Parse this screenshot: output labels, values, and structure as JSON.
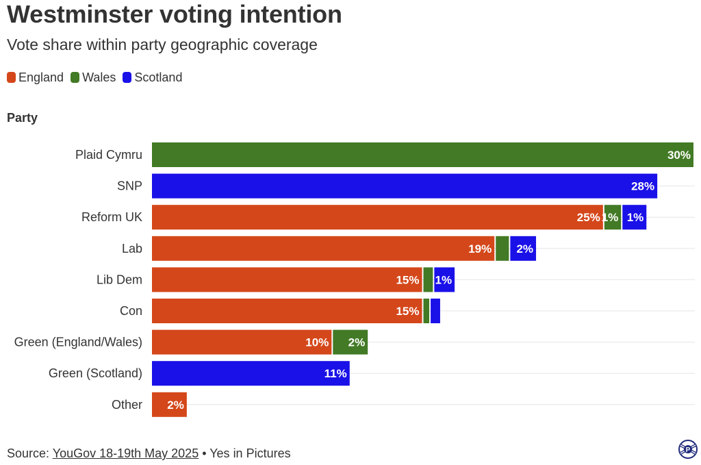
{
  "title": "Westminster voting intention",
  "subtitle": "Vote share within party geographic coverage",
  "legend": [
    {
      "label": "England",
      "color": "#d4471a"
    },
    {
      "label": "Wales",
      "color": "#427a25"
    },
    {
      "label": "Scotland",
      "color": "#1a10e8"
    }
  ],
  "axis_title": "Party",
  "source": {
    "prefix": "Source: ",
    "link_text": "YouGov 18-19th May 2025",
    "suffix": " • Yes in Pictures"
  },
  "logo_icon": "yes-in-pictures-logo",
  "colors": {
    "England": "#d4471a",
    "Wales": "#427a25",
    "Scotland": "#1a10e8"
  },
  "chart_data": {
    "type": "bar",
    "orientation": "horizontal",
    "stacked": true,
    "title": "Westminster voting intention",
    "subtitle": "Vote share within party geographic coverage",
    "ylabel": "Party",
    "xlim": [
      0,
      30
    ],
    "grid": true,
    "legend_position": "top-left",
    "categories": [
      "Plaid Cymru",
      "SNP",
      "Reform UK",
      "Lab",
      "Lib Dem",
      "Con",
      "Green (England/Wales)",
      "Green (Scotland)",
      "Other"
    ],
    "series": [
      {
        "name": "England",
        "values": [
          0,
          0,
          25,
          19,
          15,
          15,
          10,
          0,
          2
        ],
        "labels": [
          "",
          "",
          "25%",
          "19%",
          "15%",
          "15%",
          "10%",
          "",
          "2%"
        ]
      },
      {
        "name": "Wales",
        "values": [
          30,
          0,
          1,
          0.8,
          0.6,
          0.4,
          2,
          0,
          0
        ],
        "labels": [
          "30%",
          "",
          "1%",
          "",
          "",
          "",
          "2%",
          "",
          ""
        ]
      },
      {
        "name": "Scotland",
        "values": [
          0,
          28,
          1.4,
          1.5,
          1.2,
          0.6,
          0,
          11,
          0
        ],
        "labels": [
          "",
          "28%",
          "1%",
          "2%",
          "1%",
          "",
          "",
          "11%",
          ""
        ]
      }
    ]
  }
}
